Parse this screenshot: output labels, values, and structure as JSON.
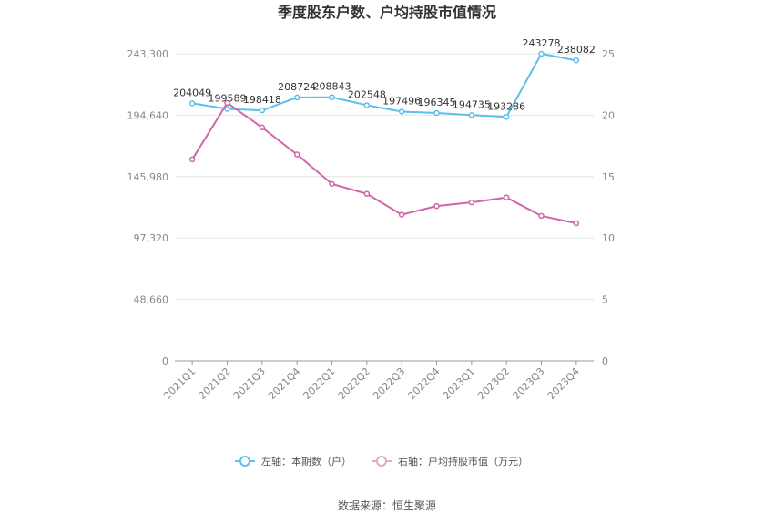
{
  "chart_data": {
    "type": "line",
    "title": "季度股东户数、户均持股市值情况",
    "categories": [
      "2021Q1",
      "2021Q2",
      "2021Q3",
      "2021Q4",
      "2022Q1",
      "2022Q2",
      "2022Q3",
      "2022Q4",
      "2023Q1",
      "2023Q2",
      "2023Q3",
      "2023Q4"
    ],
    "series": [
      {
        "name": "左轴：本期数（户）",
        "axis": "left",
        "color": "#5bc0eb",
        "values": [
          204049,
          199589,
          198418,
          208724,
          208843,
          202548,
          197496,
          196345,
          194735,
          193286,
          243278,
          238082
        ],
        "labels": [
          "204049",
          "199589",
          "198418",
          "208724",
          "208843",
          "202548",
          "197496",
          "196345",
          "194735",
          "193286",
          "243278",
          "238082"
        ]
      },
      {
        "name": "右轴：户均持股市值（万元）",
        "axis": "right",
        "color": "#d066a8",
        "values": [
          16.4,
          21.0,
          19.0,
          16.8,
          14.4,
          13.6,
          11.9,
          12.6,
          12.9,
          13.3,
          11.8,
          11.2
        ]
      }
    ],
    "left_axis": {
      "ticks": [
        0,
        48660,
        97320,
        145980,
        194640,
        243300
      ],
      "tick_labels": [
        "0",
        "48,660",
        "97,320",
        "145,980",
        "194,640",
        "243,300"
      ],
      "ylim": [
        0,
        243300
      ]
    },
    "right_axis": {
      "ticks": [
        0,
        5,
        10,
        15,
        20,
        25
      ],
      "tick_labels": [
        "0",
        "5",
        "10",
        "15",
        "20",
        "25"
      ],
      "ylim": [
        0,
        25
      ]
    },
    "grid": true,
    "legend_position": "bottom"
  },
  "source_text": "数据来源：恒生聚源"
}
